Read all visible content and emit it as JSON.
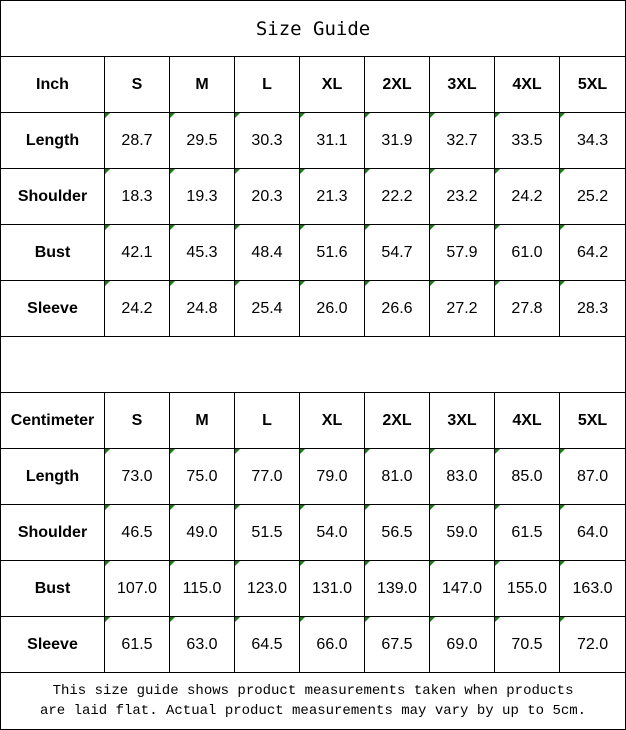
{
  "title": "Size Guide",
  "sizes": [
    "S",
    "M",
    "L",
    "XL",
    "2XL",
    "3XL",
    "4XL",
    "5XL"
  ],
  "tables": [
    {
      "unit": "Inch",
      "rows": [
        {
          "label": "Length",
          "values": [
            "28.7",
            "29.5",
            "30.3",
            "31.1",
            "31.9",
            "32.7",
            "33.5",
            "34.3"
          ]
        },
        {
          "label": "Shoulder",
          "values": [
            "18.3",
            "19.3",
            "20.3",
            "21.3",
            "22.2",
            "23.2",
            "24.2",
            "25.2"
          ]
        },
        {
          "label": "Bust",
          "values": [
            "42.1",
            "45.3",
            "48.4",
            "51.6",
            "54.7",
            "57.9",
            "61.0",
            "64.2"
          ]
        },
        {
          "label": "Sleeve",
          "values": [
            "24.2",
            "24.8",
            "25.4",
            "26.0",
            "26.6",
            "27.2",
            "27.8",
            "28.3"
          ]
        }
      ]
    },
    {
      "unit": "Centimeter",
      "rows": [
        {
          "label": "Length",
          "values": [
            "73.0",
            "75.0",
            "77.0",
            "79.0",
            "81.0",
            "83.0",
            "85.0",
            "87.0"
          ]
        },
        {
          "label": "Shoulder",
          "values": [
            "46.5",
            "49.0",
            "51.5",
            "54.0",
            "56.5",
            "59.0",
            "61.5",
            "64.0"
          ]
        },
        {
          "label": "Bust",
          "values": [
            "107.0",
            "115.0",
            "123.0",
            "131.0",
            "139.0",
            "147.0",
            "155.0",
            "163.0"
          ]
        },
        {
          "label": "Sleeve",
          "values": [
            "61.5",
            "63.0",
            "64.5",
            "66.0",
            "67.5",
            "69.0",
            "70.5",
            "72.0"
          ]
        }
      ]
    }
  ],
  "note": {
    "line1": "This size guide shows product measurements taken when products",
    "line2": "are laid flat. Actual product measurements may vary by up to 5cm."
  },
  "colors": {
    "cell_marker": "#1a7a1a",
    "border": "#000000"
  }
}
